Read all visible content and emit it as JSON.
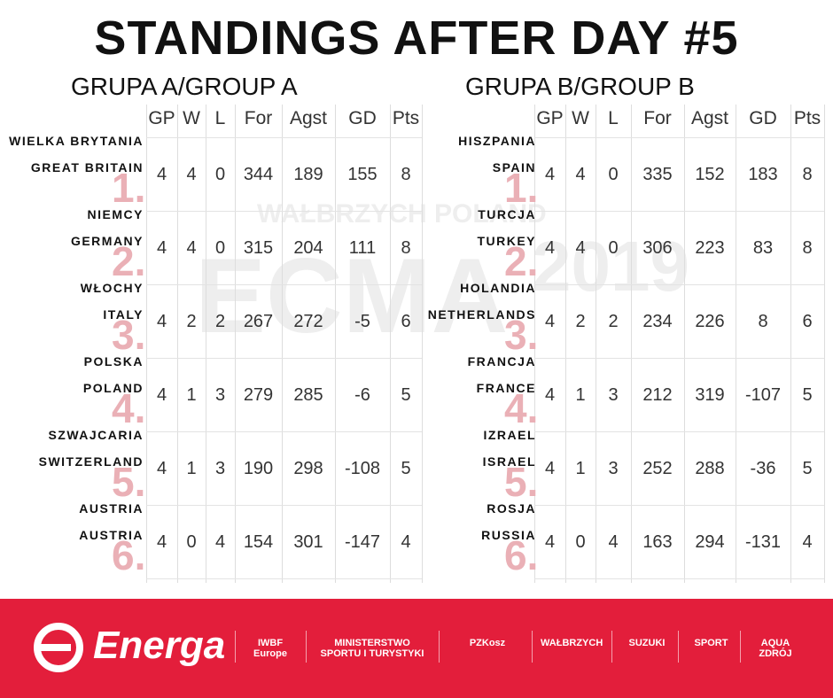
{
  "title": "STANDINGS AFTER DAY #5",
  "watermark": [
    "WAŁBRZYCH POLAND",
    "ECMA",
    "2019"
  ],
  "columns": [
    "GP",
    "W",
    "L",
    "For",
    "Agst",
    "GD",
    "Pts"
  ],
  "groups": [
    {
      "heading": "GRUPA A/GROUP A",
      "rows": [
        {
          "rank": "1.",
          "name_pl": "WIELKA BRYTANIA",
          "name_en": "GREAT BRITAIN",
          "cells": [
            4,
            4,
            0,
            344,
            189,
            155,
            8
          ]
        },
        {
          "rank": "2.",
          "name_pl": "NIEMCY",
          "name_en": "GERMANY",
          "cells": [
            4,
            4,
            0,
            315,
            204,
            111,
            8
          ]
        },
        {
          "rank": "3.",
          "name_pl": "WŁOCHY",
          "name_en": "ITALY",
          "cells": [
            4,
            2,
            2,
            267,
            272,
            -5,
            6
          ]
        },
        {
          "rank": "4.",
          "name_pl": "POLSKA",
          "name_en": "POLAND",
          "cells": [
            4,
            1,
            3,
            279,
            285,
            -6,
            5
          ]
        },
        {
          "rank": "5.",
          "name_pl": "SZWAJCARIA",
          "name_en": "SWITZERLAND",
          "cells": [
            4,
            1,
            3,
            190,
            298,
            -108,
            5
          ]
        },
        {
          "rank": "6.",
          "name_pl": "AUSTRIA",
          "name_en": "AUSTRIA",
          "cells": [
            4,
            0,
            4,
            154,
            301,
            -147,
            4
          ]
        }
      ]
    },
    {
      "heading": "GRUPA B/GROUP B",
      "rows": [
        {
          "rank": "1.",
          "name_pl": "HISZPANIA",
          "name_en": "SPAIN",
          "cells": [
            4,
            4,
            0,
            335,
            152,
            183,
            8
          ]
        },
        {
          "rank": "2.",
          "name_pl": "TURCJA",
          "name_en": "TURKEY",
          "cells": [
            4,
            4,
            0,
            306,
            223,
            83,
            8
          ]
        },
        {
          "rank": "3.",
          "name_pl": "HOLANDIA",
          "name_en": "NETHERLANDS",
          "cells": [
            4,
            2,
            2,
            234,
            226,
            8,
            6
          ]
        },
        {
          "rank": "4.",
          "name_pl": "FRANCJA",
          "name_en": "FRANCE",
          "cells": [
            4,
            1,
            3,
            212,
            319,
            -107,
            5
          ]
        },
        {
          "rank": "5.",
          "name_pl": "IZRAEL",
          "name_en": "ISRAEL",
          "cells": [
            4,
            1,
            3,
            252,
            288,
            -36,
            5
          ]
        },
        {
          "rank": "6.",
          "name_pl": "ROSJA",
          "name_en": "RUSSIA",
          "cells": [
            4,
            0,
            4,
            163,
            294,
            -131,
            4
          ]
        }
      ]
    }
  ],
  "footer": {
    "brand": "Energa",
    "sponsors": [
      "IWBF Europe",
      "MINISTERSTWO SPORTU I TURYSTYKI",
      "PZKosz",
      "WAŁBRZYCH",
      "SUZUKI",
      "SPORT",
      "AQUA ZDRÓJ"
    ]
  }
}
